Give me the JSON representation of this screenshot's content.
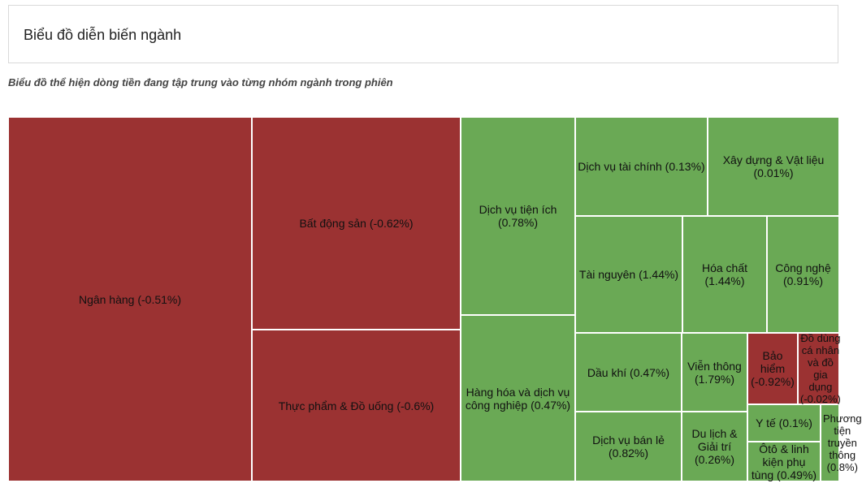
{
  "header": {
    "title": "Biểu đồ diễn biến ngành",
    "subtitle": "Biểu đồ thể hiện dòng tiền đang tập trung vào từng nhóm ngành trong phiên"
  },
  "colors": {
    "negative": "#9b3232",
    "positive": "#6aa955"
  },
  "chart_data": {
    "type": "treemap",
    "items": [
      {
        "name": "Ngân hàng",
        "change": -0.51,
        "label": "Ngân hàng (-0.51%)"
      },
      {
        "name": "Bất động sản",
        "change": -0.62,
        "label": "Bất động sản (-0.62%)"
      },
      {
        "name": "Thực phẩm & Đồ uống",
        "change": -0.6,
        "label": "Thực phẩm & Đồ uống (-0.6%)"
      },
      {
        "name": "Dịch vụ tiện ích",
        "change": 0.78,
        "label": "Dịch vụ tiện ích (0.78%)"
      },
      {
        "name": "Hàng hóa và dịch vụ công nghiệp",
        "change": 0.47,
        "label": "Hàng hóa và dịch vụ công nghiệp (0.47%)"
      },
      {
        "name": "Dịch vụ tài chính",
        "change": 0.13,
        "label": "Dịch vụ tài chính (0.13%)"
      },
      {
        "name": "Xây dựng & Vật liệu",
        "change": 0.01,
        "label": "Xây dựng & Vật liệu (0.01%)"
      },
      {
        "name": "Tài nguyên",
        "change": 1.44,
        "label": "Tài nguyên (1.44%)"
      },
      {
        "name": "Hóa chất",
        "change": 1.44,
        "label": "Hóa chất (1.44%)"
      },
      {
        "name": "Công nghệ",
        "change": 0.91,
        "label": "Công nghệ (0.91%)"
      },
      {
        "name": "Dầu khí",
        "change": 0.47,
        "label": "Dầu khí (0.47%)"
      },
      {
        "name": "Viễn thông",
        "change": 1.79,
        "label": "Viễn thông (1.79%)"
      },
      {
        "name": "Bảo hiểm",
        "change": -0.92,
        "label": "Bảo hiểm (-0.92%)"
      },
      {
        "name": "Đồ dùng cá nhân và đồ gia dụng",
        "change": -0.02,
        "label": "Đồ dùng cá nhân và đồ gia dụng (-0.02%)"
      },
      {
        "name": "Dịch vụ bán lẻ",
        "change": 0.82,
        "label": "Dịch vụ bán lẻ (0.82%)"
      },
      {
        "name": "Du lịch & Giải trí",
        "change": 0.26,
        "label": "Du lịch & Giải trí (0.26%)"
      },
      {
        "name": "Y tế",
        "change": 0.1,
        "label": "Y tế (0.1%)"
      },
      {
        "name": "Ôtô & linh kiện phụ tùng",
        "change": 0.49,
        "label": "Ôtô & linh kiện phụ tùng (0.49%)"
      },
      {
        "name": "Phương tiện truyền thông",
        "change": 0.8,
        "label": "Phương tiện truyền thông (0.8%)"
      }
    ]
  }
}
